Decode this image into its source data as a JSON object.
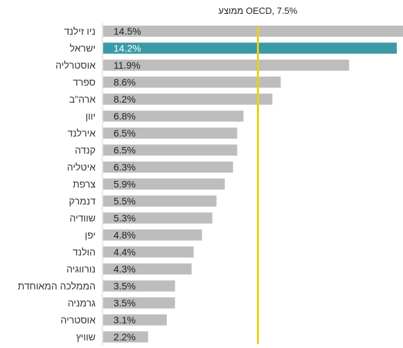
{
  "chart_data": {
    "type": "bar",
    "orientation": "horizontal",
    "categories": [
      "ניו זילנד",
      "ישראל",
      "אוסטרליה",
      "ספרד",
      "ארה\"ב",
      "יוון",
      "אירלנד",
      "קנדה",
      "איטליה",
      "צרפת",
      "דנמרק",
      "שוודיה",
      "יפן",
      "הולנד",
      "נורווגיה",
      "הממלכה המאוחדת",
      "גרמניה",
      "אוסטריה",
      "שוויץ"
    ],
    "values": [
      14.5,
      14.2,
      11.9,
      8.6,
      8.2,
      6.8,
      6.5,
      6.5,
      6.3,
      5.9,
      5.5,
      5.3,
      4.8,
      4.4,
      4.3,
      3.5,
      3.5,
      3.1,
      2.2
    ],
    "value_labels": [
      "14.5%",
      "14.2%",
      "11.9%",
      "8.6%",
      "8.2%",
      "6.8%",
      "6.5%",
      "6.5%",
      "6.3%",
      "5.9%",
      "5.5%",
      "5.3%",
      "4.8%",
      "4.4%",
      "4.3%",
      "3.5%",
      "3.5%",
      "3.1%",
      "2.2%"
    ],
    "highlight_index": 1,
    "xlim": [
      0,
      14.5
    ],
    "grid": false,
    "reference_line": {
      "value": 7.5,
      "label": "ממוצע OECD, 7.5%"
    },
    "colors": {
      "bar": "#bdbdbd",
      "highlight": "#3a9aa5",
      "reference_line": "#e8d21d",
      "axis": "#d0d0d0"
    }
  }
}
